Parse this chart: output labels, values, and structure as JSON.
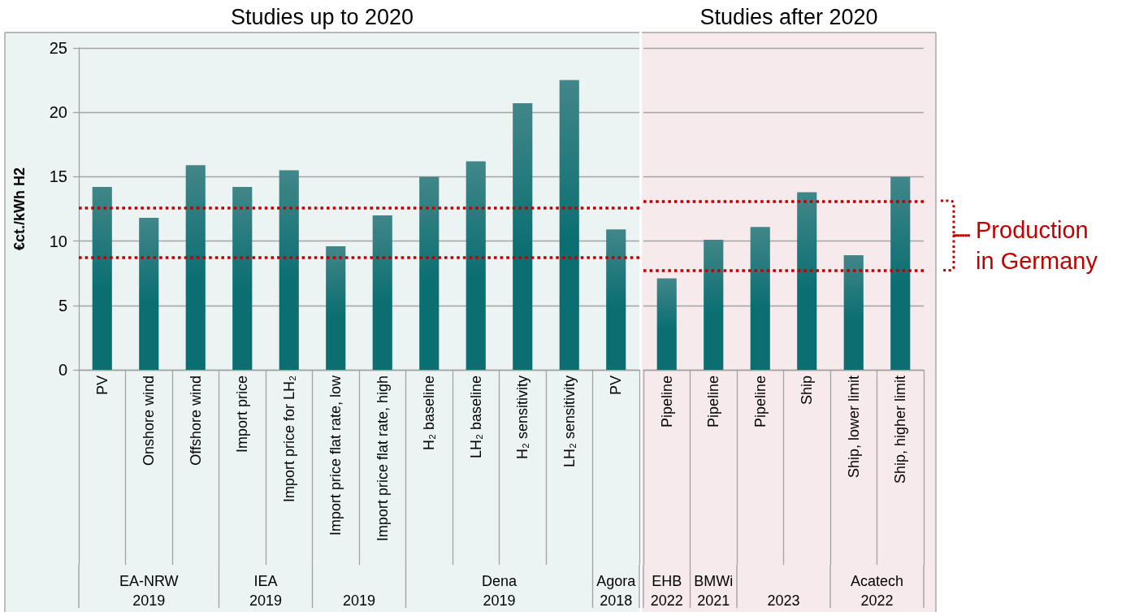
{
  "chart_data": [
    {
      "type": "bar",
      "title": "Studies up to 2020",
      "ylabel": "€ct./kWh H2",
      "categories": [
        "PV",
        "Onshore wind",
        "Offshore wind",
        "Import price",
        "Import price for LH₂",
        "Import price flat rate, low",
        "Import price flat rate, high",
        "H₂ baseline",
        "LH₂ baseline",
        "H₂ sensitivity",
        "LH₂ sensitivity",
        "PV"
      ],
      "values": [
        14.2,
        11.8,
        15.9,
        14.2,
        15.5,
        9.6,
        12.0,
        15.0,
        16.2,
        20.7,
        22.5,
        10.9
      ],
      "color": "#0b6f72",
      "ylim": [
        0,
        25
      ],
      "yticks": [
        0,
        5,
        10,
        15,
        20,
        25
      ],
      "grid": "y",
      "ref_lines": [
        {
          "axis": "y",
          "value": 12.6,
          "color": "#c00000",
          "line_style": "dotted"
        },
        {
          "axis": "y",
          "value": 8.7,
          "color": "#c00000",
          "line_style": "dotted"
        }
      ],
      "annotations": [
        "EA-NRW\n2019",
        "IEA\n2019",
        "2019",
        "Dena\n2019",
        "Agora\n2018"
      ]
    },
    {
      "type": "bar",
      "title": "Studies after 2020",
      "categories": [
        "Pipeline",
        "Pipeline",
        "Pipeline",
        "Ship",
        "Ship, lower limit",
        "Ship, higher limit"
      ],
      "values": [
        7.1,
        10.1,
        11.1,
        13.8,
        8.9,
        15.0
      ],
      "color": "#0b6f72",
      "ylim": [
        0,
        25
      ],
      "yticks": [
        0,
        5,
        10,
        15,
        20,
        25
      ],
      "tick_labels": "x",
      "grid": "y",
      "ref_lines": [
        {
          "axis": "y",
          "value": 13.1,
          "color": "#c00000",
          "line_style": "dotted"
        },
        {
          "axis": "y",
          "value": 7.7,
          "color": "#c00000",
          "line_style": "dotted"
        }
      ],
      "annotations": [
        "EHB\n2022",
        "BMWi\n2021",
        "2023",
        "Acatech\n2022",
        "Production\nin Germany"
      ]
    }
  ]
}
